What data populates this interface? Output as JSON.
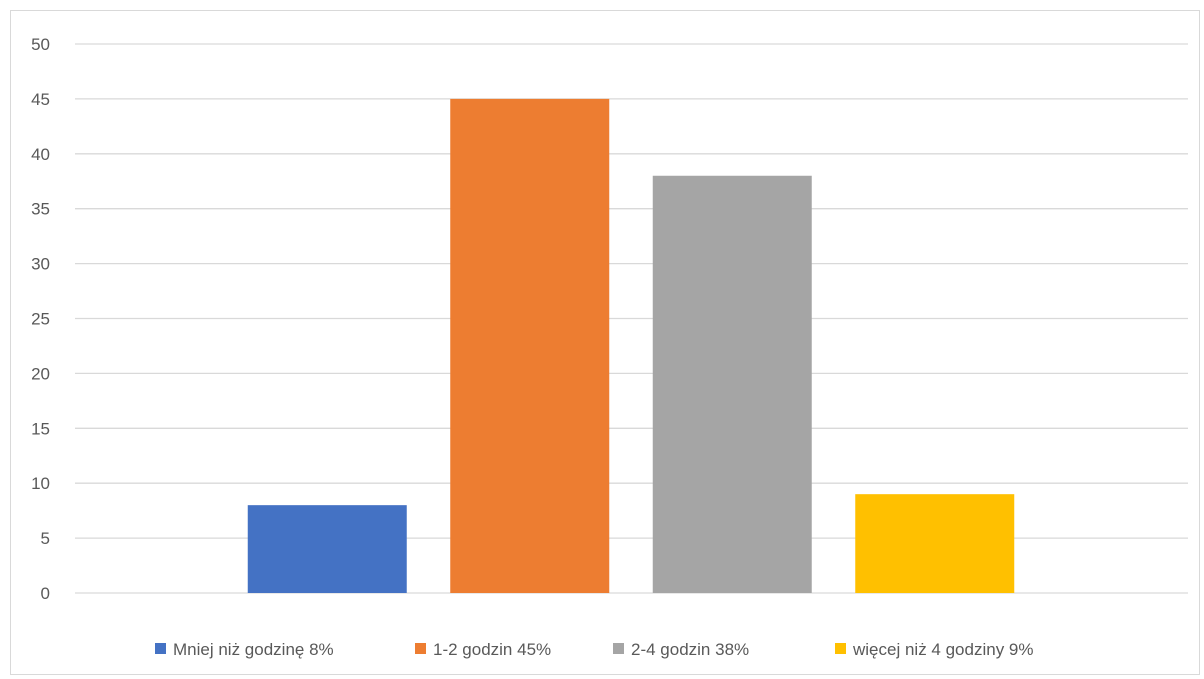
{
  "chart_data": {
    "type": "bar",
    "title": "",
    "xlabel": "",
    "ylabel": "",
    "ylim": [
      0,
      50
    ],
    "y_ticks": [
      0,
      5,
      10,
      15,
      20,
      25,
      30,
      35,
      40,
      45,
      50
    ],
    "grid": true,
    "legend_position": "bottom",
    "categories": [
      "Mniej niż godzinę 8%",
      "1-2 godzin 45%",
      "2-4 godzin 38%",
      "więcej niż 4 godziny 9%"
    ],
    "values": [
      8,
      45,
      38,
      9
    ],
    "colors": [
      "#4472c4",
      "#ed7d31",
      "#a5a5a5",
      "#ffc000"
    ]
  }
}
